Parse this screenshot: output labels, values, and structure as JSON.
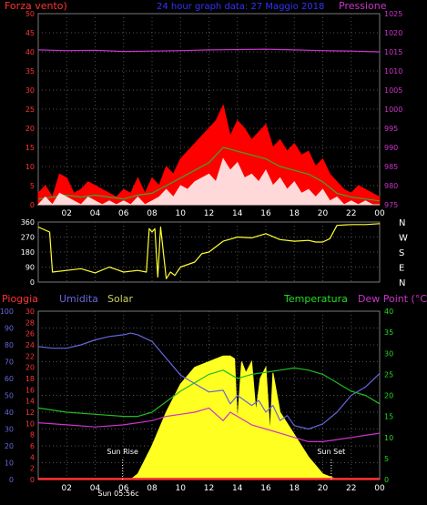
{
  "header": {
    "left_label": "Forza vento)",
    "title": "24 hour graph data: 27 Maggio 2018",
    "right_label": "Pressione"
  },
  "bottom_header": {
    "rain": "Pioggia",
    "humidity": "Umidita",
    "solar": "Solar",
    "temperature": "Temperatura",
    "dewpoint": "Dew Point (°C)"
  },
  "markers": {
    "sunrise": "Sun Rise",
    "sunset": "Sun Set"
  },
  "clock_label": "Sun 05:56c",
  "colors": {
    "wind_gust": "#ff0000",
    "wind_avg": "#33aa33",
    "wind_speed": "#ffffff",
    "pressure": "#cc33cc",
    "direction": "#ffff33",
    "humidity": "#6666dd",
    "temperature": "#22bb22",
    "dewpoint": "#cc33cc",
    "solar": "#ffff22",
    "rain": "#ff3333",
    "grid": "#505050",
    "frame": "#777777"
  },
  "chart_data": [
    {
      "id": "wind",
      "type": "line",
      "x_ticks": [
        "02",
        "04",
        "06",
        "08",
        "10",
        "12",
        "14",
        "16",
        "18",
        "20",
        "22",
        "00"
      ],
      "xlim": [
        0,
        24
      ],
      "left_axis": {
        "ylim": [
          0,
          50
        ],
        "ticks": [
          0,
          5,
          10,
          15,
          20,
          25,
          30,
          35,
          40,
          45,
          50
        ]
      },
      "right_axis": {
        "ylim": [
          975,
          1025
        ],
        "ticks": [
          975,
          980,
          985,
          990,
          995,
          1000,
          1005,
          1010,
          1015,
          1020,
          1025
        ]
      },
      "series": [
        {
          "axis": "right",
          "color": "pressure",
          "x": [
            0,
            2,
            4,
            6,
            8,
            10,
            12,
            14,
            16,
            18,
            20,
            22,
            24
          ],
          "y": [
            1015.5,
            1015.3,
            1015.4,
            1015.1,
            1015.2,
            1015.3,
            1015.5,
            1015.6,
            1015.7,
            1015.5,
            1015.3,
            1015.2,
            1015.0
          ]
        },
        {
          "axis": "left",
          "color": "wind_gust",
          "x": [
            0,
            0.5,
            1,
            1.5,
            2,
            2.5,
            3,
            3.5,
            4,
            4.5,
            5,
            5.5,
            6,
            6.5,
            7,
            7.5,
            8,
            8.5,
            9,
            9.5,
            10,
            10.5,
            11,
            11.5,
            12,
            12.5,
            13,
            13.5,
            14,
            14.5,
            15,
            15.5,
            16,
            16.5,
            17,
            17.5,
            18,
            18.5,
            19,
            19.5,
            20,
            20.5,
            21,
            21.5,
            22,
            22.5,
            23,
            23.5,
            24
          ],
          "y": [
            3,
            5,
            2,
            8,
            7,
            3,
            4,
            6,
            5,
            4,
            3,
            2,
            4,
            3,
            7,
            3,
            7,
            5,
            10,
            8,
            12,
            14,
            16,
            18,
            20,
            22,
            26,
            18,
            22,
            20,
            17,
            19,
            21,
            15,
            17,
            14,
            16,
            13,
            14,
            10,
            12,
            8,
            6,
            4,
            3,
            5,
            4,
            3,
            2
          ]
        },
        {
          "axis": "left",
          "color": "wind_avg",
          "x": [
            0,
            1,
            2,
            3,
            4,
            5,
            6,
            7,
            8,
            9,
            10,
            11,
            12,
            13,
            14,
            15,
            16,
            17,
            18,
            19,
            20,
            21,
            22,
            23,
            24
          ],
          "y": [
            1.5,
            2,
            2.5,
            2,
            2.5,
            2,
            1.5,
            2.5,
            3,
            5,
            7,
            9,
            11,
            15,
            14,
            13,
            12,
            10,
            9,
            8,
            6,
            3,
            2,
            1.5,
            1
          ]
        },
        {
          "axis": "left",
          "color": "wind_speed",
          "x": [
            0,
            0.5,
            1,
            1.5,
            2,
            2.5,
            3,
            3.5,
            4,
            4.5,
            5,
            5.5,
            6,
            6.5,
            7,
            7.5,
            8,
            8.5,
            9,
            9.5,
            10,
            10.5,
            11,
            11.5,
            12,
            12.5,
            13,
            13.5,
            14,
            14.5,
            15,
            15.5,
            16,
            16.5,
            17,
            17.5,
            18,
            18.5,
            19,
            19.5,
            20,
            20.5,
            21,
            21.5,
            22,
            22.5,
            23,
            23.5,
            24
          ],
          "y": [
            0,
            2,
            0,
            3,
            2,
            1,
            0,
            2,
            1,
            0,
            1,
            0,
            1,
            0,
            2,
            0,
            1,
            2,
            4,
            2,
            5,
            4,
            6,
            7,
            8,
            6,
            12,
            9,
            11,
            7,
            8,
            6,
            9,
            5,
            7,
            4,
            6,
            3,
            4,
            2,
            4,
            1,
            2,
            0,
            1,
            0,
            1,
            0,
            0
          ]
        }
      ]
    },
    {
      "id": "direction",
      "type": "line",
      "xlim": [
        0,
        24
      ],
      "left_axis": {
        "ylim": [
          0,
          360
        ],
        "ticks": [
          0,
          90,
          180,
          270,
          360
        ]
      },
      "right_labels": [
        "N",
        "W",
        "S",
        "E",
        "N"
      ],
      "series": [
        {
          "axis": "left",
          "color": "direction",
          "x": [
            0,
            0.8,
            1,
            2,
            3,
            4,
            5,
            6,
            7,
            7.6,
            7.8,
            8,
            8.2,
            8.4,
            8.6,
            9,
            9.3,
            9.6,
            10,
            11,
            11.5,
            12,
            13,
            14,
            15,
            16,
            17,
            18,
            19,
            19.5,
            20,
            20.5,
            21,
            22,
            23,
            24
          ],
          "y": [
            330,
            300,
            60,
            70,
            80,
            55,
            90,
            60,
            70,
            60,
            320,
            300,
            320,
            30,
            330,
            20,
            60,
            40,
            90,
            120,
            170,
            180,
            245,
            270,
            265,
            290,
            255,
            245,
            250,
            240,
            240,
            260,
            340,
            345,
            345,
            350
          ]
        }
      ]
    },
    {
      "id": "temp_humidity",
      "type": "line",
      "xlim": [
        0,
        24
      ],
      "axis_humidity": {
        "ylim": [
          0,
          100
        ],
        "ticks": [
          0,
          10,
          20,
          30,
          40,
          50,
          60,
          70,
          80,
          90,
          100
        ]
      },
      "axis_rain": {
        "ylim": [
          0,
          30
        ],
        "ticks": [
          0,
          2,
          4,
          6,
          8,
          10,
          12,
          14,
          16,
          18,
          20,
          22,
          24,
          26,
          28,
          30
        ]
      },
      "axis_temperature": {
        "ylim": [
          0,
          40
        ],
        "ticks": [
          0,
          5,
          10,
          15,
          20,
          25,
          30,
          35,
          40
        ]
      },
      "series": [
        {
          "axis": "solar",
          "color": "solar",
          "x": [
            0,
            6.5,
            7,
            8,
            9,
            10,
            11,
            12,
            12.5,
            13,
            13.5,
            13.8,
            14,
            14.3,
            14.6,
            15,
            15.3,
            15.6,
            16,
            16.3,
            16.5,
            17,
            17.5,
            18,
            18.5,
            19,
            20,
            21,
            24
          ],
          "y": [
            0,
            0,
            1,
            6,
            12,
            17,
            20,
            21,
            21.5,
            22,
            22,
            21.5,
            10,
            21,
            19,
            21,
            12,
            18,
            20,
            8,
            19,
            12,
            10,
            8,
            6,
            4,
            1,
            0,
            0
          ]
        },
        {
          "axis": "humidity",
          "color": "humidity",
          "x": [
            0,
            1,
            2,
            3,
            4,
            5,
            6,
            6.5,
            7,
            8,
            9,
            10,
            11,
            12,
            13,
            13.5,
            14,
            14.5,
            15,
            15.5,
            16,
            16.5,
            17,
            17.5,
            18,
            19,
            20,
            21,
            22,
            23,
            24
          ],
          "y": [
            79,
            78,
            78,
            80,
            83,
            85,
            86,
            87,
            86,
            82,
            72,
            62,
            57,
            52,
            53,
            45,
            50,
            47,
            44,
            47,
            40,
            44,
            35,
            38,
            32,
            30,
            33,
            40,
            50,
            55,
            63
          ]
        },
        {
          "axis": "temperature",
          "color": "temperature",
          "x": [
            0,
            2,
            4,
            6,
            7,
            8,
            9,
            10,
            11,
            12,
            13,
            14,
            15,
            16,
            17,
            18,
            19,
            20,
            21,
            22,
            23,
            24
          ],
          "y": [
            17,
            16,
            15.5,
            15,
            15,
            16,
            18.5,
            21,
            23,
            25,
            26,
            24,
            25,
            25.5,
            26,
            26.5,
            26,
            25,
            23,
            21,
            20,
            18
          ]
        },
        {
          "axis": "temperature",
          "color": "dewpoint",
          "x": [
            0,
            2,
            4,
            6,
            7,
            8,
            9,
            10,
            11,
            12,
            13,
            13.5,
            14,
            15,
            16,
            17,
            18,
            19,
            20,
            21,
            22,
            23,
            24
          ],
          "y": [
            13.5,
            13,
            12.5,
            13,
            13.5,
            14,
            15,
            15.5,
            16,
            17,
            14,
            16,
            15,
            13,
            12,
            11,
            10,
            9,
            9,
            9.5,
            10,
            10.5,
            11
          ]
        },
        {
          "axis": "rain",
          "color": "rain",
          "x": [
            0,
            24
          ],
          "y": [
            0.1,
            0.1
          ]
        }
      ],
      "markers": [
        {
          "x": 5.93,
          "label": "sunrise"
        },
        {
          "x": 20.6,
          "label": "sunset"
        }
      ]
    }
  ]
}
